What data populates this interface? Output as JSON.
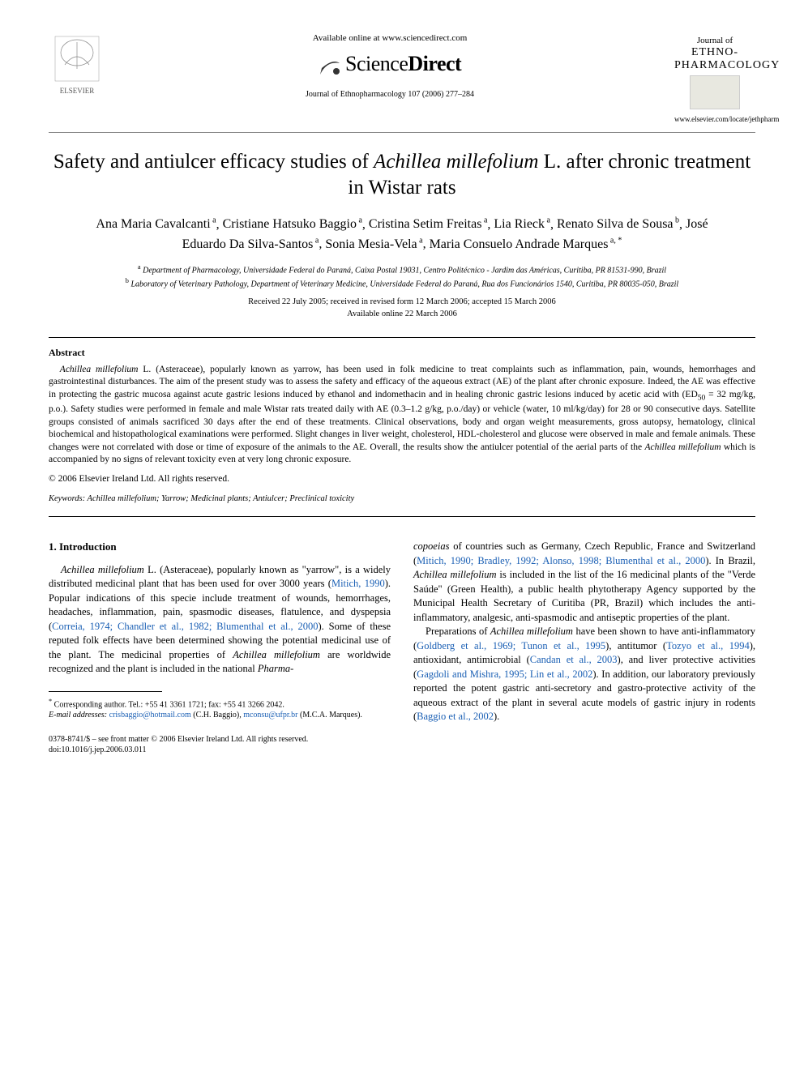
{
  "header": {
    "available_text": "Available online at www.sciencedirect.com",
    "sd_brand_left": "Science",
    "sd_brand_right": "Direct",
    "journal_ref": "Journal of Ethnopharmacology 107 (2006) 277–284",
    "journal_name_line1": "Journal of",
    "journal_name_line2": "ETHNO-",
    "journal_name_line3": "PHARMACOLOGY",
    "locate_url": "www.elsevier.com/locate/jethpharm"
  },
  "title": {
    "pre": "Safety and antiulcer efficacy studies of ",
    "species": "Achillea millefolium",
    "post": " L. after chronic treatment in Wistar rats"
  },
  "authors_html_parts": [
    {
      "name": "Ana Maria Cavalcanti",
      "aff": "a"
    },
    {
      "name": "Cristiane Hatsuko Baggio",
      "aff": "a"
    },
    {
      "name": "Cristina Setim Freitas",
      "aff": "a"
    },
    {
      "name": "Lia Rieck",
      "aff": "a"
    },
    {
      "name": "Renato Silva de Sousa",
      "aff": "b"
    },
    {
      "name": "José Eduardo Da Silva-Santos",
      "aff": "a"
    },
    {
      "name": "Sonia Mesia-Vela",
      "aff": "a"
    },
    {
      "name": "Maria Consuelo Andrade Marques",
      "aff": "a,",
      "corr": true
    }
  ],
  "affiliations": {
    "a": "Department of Pharmacology, Universidade Federal do Paraná, Caixa Postal 19031, Centro Politécnico - Jardim das Américas, Curitiba, PR 81531-990, Brazil",
    "b": "Laboratory of Veterinary Pathology, Department of Veterinary Medicine, Universidade Federal do Paraná, Rua dos Funcionários 1540, Curitiba, PR 80035-050, Brazil"
  },
  "dates": {
    "line1": "Received 22 July 2005; received in revised form 12 March 2006; accepted 15 March 2006",
    "line2": "Available online 22 March 2006"
  },
  "abstract": {
    "heading": "Abstract",
    "body_parts": [
      {
        "t": "Achillea millefolium",
        "italic": true
      },
      {
        "t": " L. (Asteraceae), popularly known as yarrow, has been used in folk medicine to treat complaints such as inflammation, pain, wounds, hemorrhages and gastrointestinal disturbances. The aim of the present study was to assess the safety and efficacy of the aqueous extract (AE) of the plant after chronic exposure. Indeed, the AE was effective in protecting the gastric mucosa against acute gastric lesions induced by ethanol and indomethacin and in healing chronic gastric lesions induced by acetic acid with (ED"
      },
      {
        "t": "50",
        "sub": true
      },
      {
        "t": " = 32 mg/kg, p.o.). Safety studies were performed in female and male Wistar rats treated daily with AE (0.3–1.2 g/kg, p.o./day) or vehicle (water, 10 ml/kg/day) for 28 or 90 consecutive days. Satellite groups consisted of animals sacrificed 30 days after the end of these treatments. Clinical observations, body and organ weight measurements, gross autopsy, hematology, clinical biochemical and histopathological examinations were performed. Slight changes in liver weight, cholesterol, HDL-cholesterol and glucose were observed in male and female animals. These changes were not correlated with dose or time of exposure of the animals to the AE. Overall, the results show the antiulcer potential of the aerial parts of the "
      },
      {
        "t": "Achillea millefolium",
        "italic": true
      },
      {
        "t": " which is accompanied by no signs of relevant toxicity even at very long chronic exposure."
      }
    ],
    "copyright": "© 2006 Elsevier Ireland Ltd. All rights reserved.",
    "keywords_label": "Keywords:",
    "keywords": " Achillea millefolium; Yarrow; Medicinal plants; Antiulcer; Preclinical toxicity"
  },
  "body": {
    "section1_heading": "1.  Introduction",
    "col1": {
      "p1_pre": "Achillea millefolium",
      "p1_mid": " L. (Asteraceae), popularly known as \"yarrow\", is a widely distributed medicinal plant that has been used for over 3000 years (",
      "p1_ref1": "Mitich, 1990",
      "p1_post1": "). Popular indications of this specie include treatment of wounds, hemorrhages, headaches, inflammation, pain, spasmodic diseases, flatulence, and dyspepsia (",
      "p1_ref2": "Correia, 1974; Chandler et al., 1982; Blumenthal et al., 2000",
      "p1_post2": "). Some of these reputed folk effects have been determined showing the potential medicinal use of the plant. The medicinal properties of ",
      "p1_species2": "Achillea millefolium",
      "p1_post3": " are worldwide recognized and the plant is included in the national ",
      "p1_pharma": "Pharma-"
    },
    "col2": {
      "p1_pre": "copoeias",
      "p1_mid": " of countries such as Germany, Czech Republic, France and Switzerland (",
      "p1_ref1": "Mitich, 1990; Bradley, 1992; Alonso, 1998; Blumenthal et al., 2000",
      "p1_post1": "). In Brazil, ",
      "p1_species": "Achillea millefolium",
      "p1_post2": " is included in the list of the 16 medicinal plants of the \"Verde Saúde\" (Green Health), a public health phytotherapy Agency supported by the Municipal Health Secretary of Curitiba (PR, Brazil) which includes the anti-inflammatory, analgesic, anti-spasmodic and antiseptic properties of the plant.",
      "p2_pre": "Preparations of ",
      "p2_species": "Achillea millefolium",
      "p2_mid": " have been shown to have anti-inflammatory (",
      "p2_ref1": "Goldberg et al., 1969; Tunon et al., 1995",
      "p2_mid2": "), antitumor (",
      "p2_ref2": "Tozyo et al., 1994",
      "p2_mid3": "), antioxidant, antimicrobial (",
      "p2_ref3": "Candan et al., 2003",
      "p2_mid4": "), and liver protective activities (",
      "p2_ref4": "Gagdoli and Mishra, 1995; Lin et al., 2002",
      "p2_post": "). In addition, our laboratory previously reported the potent gastric anti-secretory and gastro-protective activity of the aqueous extract of the plant in several acute models of gastric injury in rodents (",
      "p2_ref5": "Baggio et al., 2002",
      "p2_end": ")."
    }
  },
  "footnotes": {
    "corr": "Corresponding author. Tel.: +55 41 3361 1721; fax: +55 41 3266 2042.",
    "email_label": "E-mail addresses:",
    "email1": "crisbaggio@hotmail.com",
    "email1_who": " (C.H. Baggio),",
    "email2": "mconsu@ufpr.br",
    "email2_who": " (M.C.A. Marques)."
  },
  "footer": {
    "line1": "0378-8741/$ – see front matter © 2006 Elsevier Ireland Ltd. All rights reserved.",
    "line2": "doi:10.1016/j.jep.2006.03.011"
  },
  "colors": {
    "link": "#1a5fb4",
    "text": "#000000",
    "bg": "#ffffff"
  }
}
